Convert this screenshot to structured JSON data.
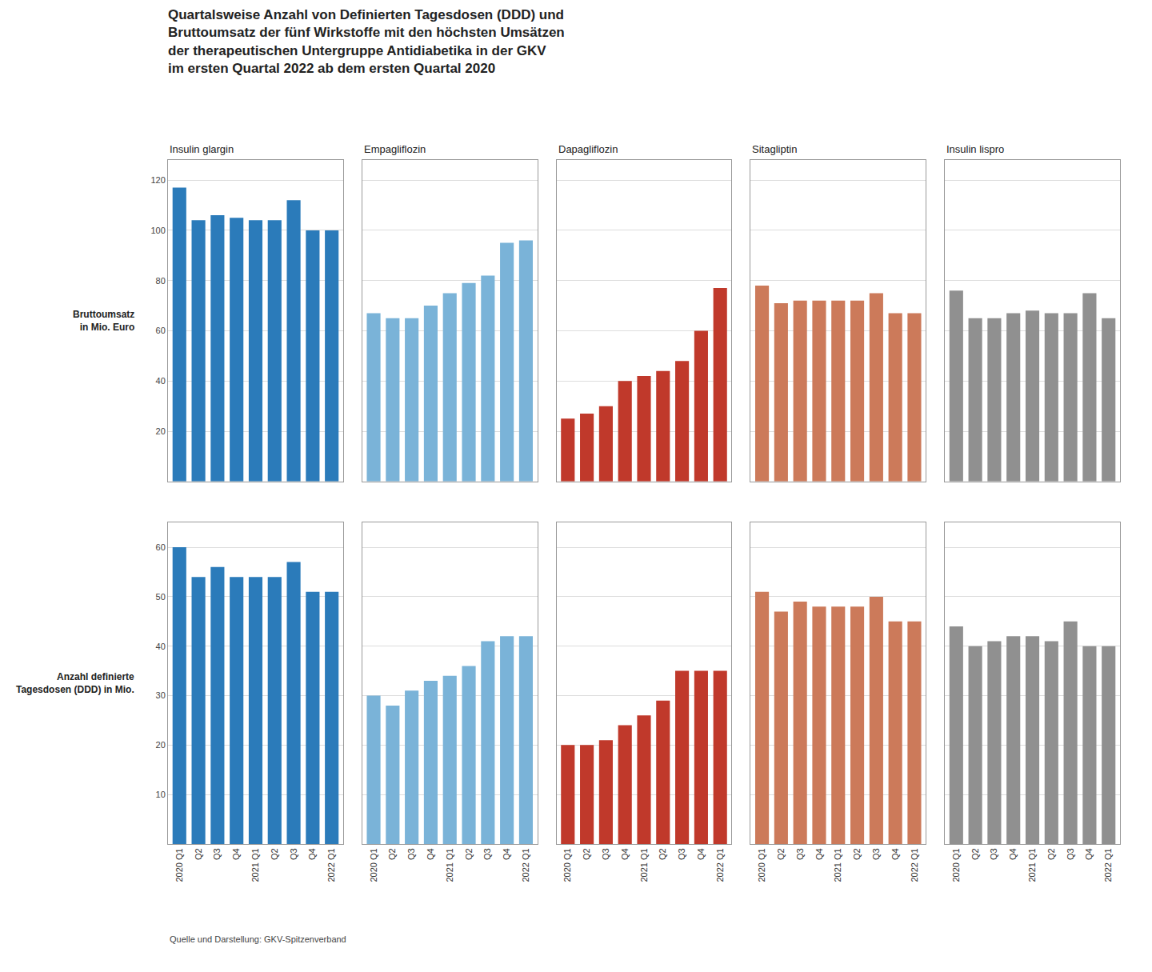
{
  "title": "Quartalsweise Anzahl von Definierten Tagesdosen (DDD) und\nBruttoumsatz der fünf Wirkstoffe mit den höchsten Umsätzen\nder therapeutischen Untergruppe Antidiabetika in der GKV\nim ersten Quartal 2022 ab dem ersten Quartal 2020",
  "annotations": [
    "Quelle und Darstellung: GKV-Spitzenverband"
  ],
  "chart_data": [
    {
      "type": "bar",
      "title": "Insulin glargin",
      "ylabel": "Bruttoumsatz\nin Mio. Euro",
      "categories": [
        "2020 Q1",
        "Q2",
        "Q3",
        "Q4",
        "2021 Q1",
        "Q2",
        "Q3",
        "Q4",
        "2022 Q1"
      ],
      "values": [
        117,
        104,
        106,
        105,
        104,
        104,
        112,
        100,
        100
      ],
      "color": "#2b7bba",
      "ylim": [
        0,
        128
      ],
      "yticks": [
        20,
        40,
        60,
        80,
        100,
        120
      ],
      "grid": true,
      "tick_labels": "y"
    },
    {
      "type": "bar",
      "title": "Empagliflozin",
      "categories": [
        "2020 Q1",
        "Q2",
        "Q3",
        "Q4",
        "2021 Q1",
        "Q2",
        "Q3",
        "Q4",
        "2022 Q1"
      ],
      "values": [
        67,
        65,
        65,
        70,
        75,
        79,
        82,
        95,
        96
      ],
      "color": "#7ab3d8",
      "ylim": [
        0,
        128
      ],
      "yticks": [
        20,
        40,
        60,
        80,
        100,
        120
      ],
      "grid": true,
      "tick_labels": false
    },
    {
      "type": "bar",
      "title": "Dapagliflozin",
      "categories": [
        "2020 Q1",
        "Q2",
        "Q3",
        "Q4",
        "2021 Q1",
        "Q2",
        "Q3",
        "Q4",
        "2022 Q1"
      ],
      "values": [
        25,
        27,
        30,
        40,
        42,
        44,
        48,
        60,
        77
      ],
      "color": "#c0392b",
      "ylim": [
        0,
        128
      ],
      "yticks": [
        20,
        40,
        60,
        80,
        100,
        120
      ],
      "grid": true,
      "tick_labels": false
    },
    {
      "type": "bar",
      "title": "Sitagliptin",
      "categories": [
        "2020 Q1",
        "Q2",
        "Q3",
        "Q4",
        "2021 Q1",
        "Q2",
        "Q3",
        "Q4",
        "2022 Q1"
      ],
      "values": [
        78,
        71,
        72,
        72,
        72,
        72,
        75,
        67,
        67
      ],
      "color": "#cc7a5a",
      "ylim": [
        0,
        128
      ],
      "yticks": [
        20,
        40,
        60,
        80,
        100,
        120
      ],
      "grid": true,
      "tick_labels": false
    },
    {
      "type": "bar",
      "title": "Insulin lispro",
      "categories": [
        "2020 Q1",
        "Q2",
        "Q3",
        "Q4",
        "2021 Q1",
        "Q2",
        "Q3",
        "Q4",
        "2022 Q1"
      ],
      "values": [
        76,
        65,
        65,
        67,
        68,
        67,
        67,
        75,
        65
      ],
      "color": "#909090",
      "ylim": [
        0,
        128
      ],
      "yticks": [
        20,
        40,
        60,
        80,
        100,
        120
      ],
      "grid": true,
      "tick_labels": false
    },
    {
      "type": "bar",
      "ylabel": "Anzahl definierte\nTagesdosen (DDD) in Mio.",
      "categories": [
        "2020 Q1",
        "Q2",
        "Q3",
        "Q4",
        "2021 Q1",
        "Q2",
        "Q3",
        "Q4",
        "2022 Q1"
      ],
      "values": [
        60,
        54,
        56,
        54,
        54,
        54,
        57,
        51,
        51
      ],
      "color": "#2b7bba",
      "ylim": [
        0,
        65
      ],
      "yticks": [
        10,
        20,
        30,
        40,
        50,
        60
      ],
      "grid": true,
      "tick_labels": true
    },
    {
      "type": "bar",
      "categories": [
        "2020 Q1",
        "Q2",
        "Q3",
        "Q4",
        "2021 Q1",
        "Q2",
        "Q3",
        "Q4",
        "2022 Q1"
      ],
      "values": [
        30,
        28,
        31,
        33,
        34,
        36,
        41,
        42,
        42
      ],
      "color": "#7ab3d8",
      "ylim": [
        0,
        65
      ],
      "yticks": [
        10,
        20,
        30,
        40,
        50,
        60
      ],
      "grid": true,
      "tick_labels": "x"
    },
    {
      "type": "bar",
      "categories": [
        "2020 Q1",
        "Q2",
        "Q3",
        "Q4",
        "2021 Q1",
        "Q2",
        "Q3",
        "Q4",
        "2022 Q1"
      ],
      "values": [
        20,
        20,
        21,
        24,
        26,
        29,
        35,
        35,
        35
      ],
      "color": "#c0392b",
      "ylim": [
        0,
        65
      ],
      "yticks": [
        10,
        20,
        30,
        40,
        50,
        60
      ],
      "grid": true,
      "tick_labels": "x"
    },
    {
      "type": "bar",
      "categories": [
        "2020 Q1",
        "Q2",
        "Q3",
        "Q4",
        "2021 Q1",
        "Q2",
        "Q3",
        "Q4",
        "2022 Q1"
      ],
      "values": [
        51,
        47,
        49,
        48,
        48,
        48,
        50,
        45,
        45
      ],
      "color": "#cc7a5a",
      "ylim": [
        0,
        65
      ],
      "yticks": [
        10,
        20,
        30,
        40,
        50,
        60
      ],
      "grid": true,
      "tick_labels": "x"
    },
    {
      "type": "bar",
      "categories": [
        "2020 Q1",
        "Q2",
        "Q3",
        "Q4",
        "2021 Q1",
        "Q2",
        "Q3",
        "Q4",
        "2022 Q1"
      ],
      "values": [
        44,
        40,
        41,
        42,
        42,
        41,
        45,
        40,
        40
      ],
      "color": "#909090",
      "ylim": [
        0,
        65
      ],
      "yticks": [
        10,
        20,
        30,
        40,
        50,
        60
      ],
      "grid": true,
      "tick_labels": "x"
    }
  ]
}
